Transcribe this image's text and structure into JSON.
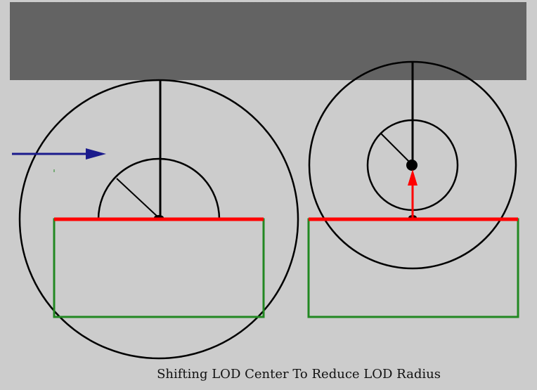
{
  "caption": "Shifting LOD Center To Reduce LOD Radius",
  "colors": {
    "background": "#cccccc",
    "ground_band": "#666666",
    "circle_stroke": "#000000",
    "surface_line": "#ff0000",
    "box_outline": "#228822",
    "motion_arrow": "#1a1a8c",
    "shift_arrow": "#ff0000"
  },
  "panels": [
    {
      "name": "before-shift",
      "lod_center_shifted": false
    },
    {
      "name": "after-shift",
      "lod_center_shifted": true
    }
  ]
}
